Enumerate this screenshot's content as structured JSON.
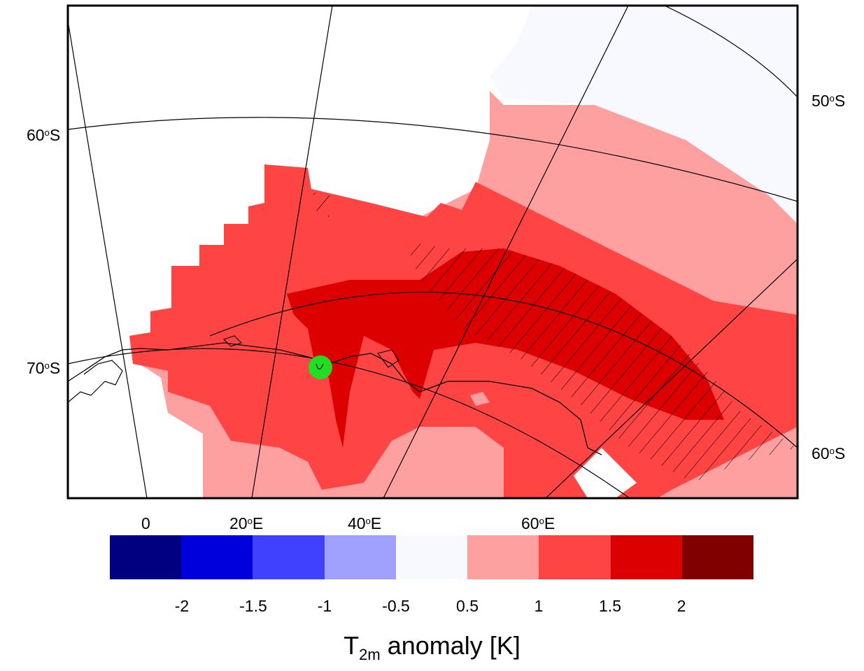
{
  "map": {
    "lat_labels_left": [
      "60°S",
      "70°S"
    ],
    "lat_labels_right": [
      "50°S",
      "60°S"
    ],
    "lon_labels": [
      "0",
      "20°E",
      "40°E",
      "60°E"
    ],
    "marker_color": "#22dd22",
    "hatching": "significant anomaly"
  },
  "colorbar": {
    "tick_labels": [
      "-2",
      "-1.5",
      "-1",
      "-0.5",
      "0.5",
      "1",
      "1.5",
      "2"
    ],
    "colors": [
      "#000080",
      "#0000dd",
      "#4040ff",
      "#a0a0ff",
      "#f8f8ff",
      "#ffa0a0",
      "#ff4444",
      "#dd0000",
      "#800000"
    ],
    "title_main": "T",
    "title_sub": "2m",
    "title_rest": " anomaly [K]"
  }
}
